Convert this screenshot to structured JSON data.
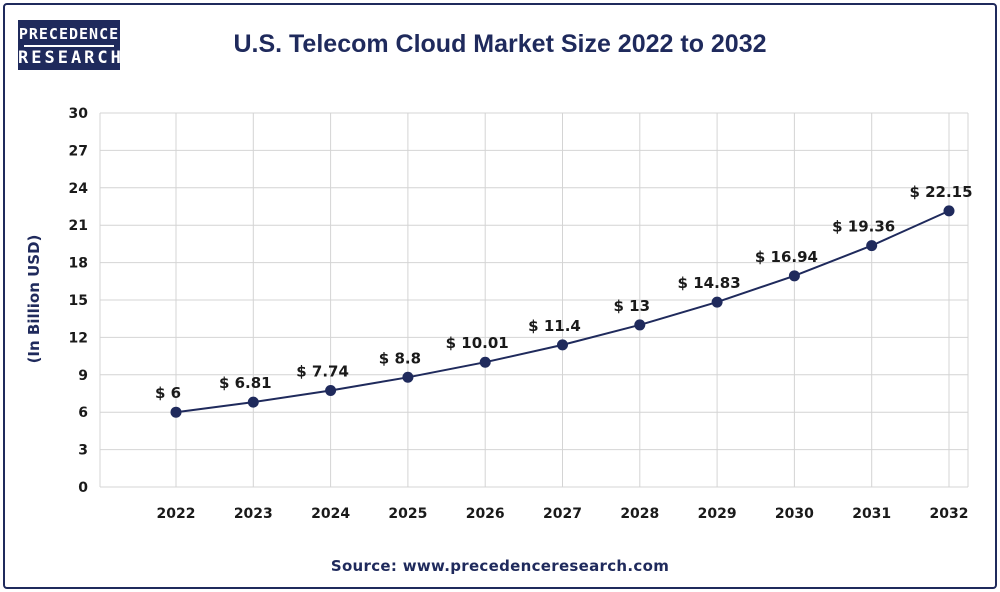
{
  "logo": {
    "line1": "PRECEDENCE",
    "line2": "RESEARCH"
  },
  "header": {
    "title": "U.S. Telecom Cloud Market Size 2022 to 2032"
  },
  "footer": {
    "source": "Source: www.precedenceresearch.com"
  },
  "colors": {
    "primary": "#1f2a5c",
    "grid": "#d4d4d4",
    "text": "#1a1a1a"
  },
  "chart_data": {
    "type": "line",
    "title": "U.S. Telecom Cloud Market Size 2022 to 2032",
    "xlabel": "",
    "ylabel": "(In Billion USD)",
    "categories": [
      "2022",
      "2023",
      "2024",
      "2025",
      "2026",
      "2027",
      "2028",
      "2029",
      "2030",
      "2031",
      "2032"
    ],
    "values": [
      6,
      6.81,
      7.74,
      8.8,
      10.01,
      11.4,
      13,
      14.83,
      16.94,
      19.36,
      22.15
    ],
    "data_labels": [
      "$ 6",
      "$ 6.81",
      "$ 7.74",
      "$ 8.8",
      "$ 10.01",
      "$ 11.4",
      "$ 13",
      "$ 14.83",
      "$ 16.94",
      "$ 19.36",
      "$ 22.15"
    ],
    "ylim": [
      0,
      30
    ],
    "yticks": [
      0,
      3,
      6,
      9,
      12,
      15,
      18,
      21,
      24,
      27,
      30
    ],
    "grid": true,
    "legend": "none"
  }
}
